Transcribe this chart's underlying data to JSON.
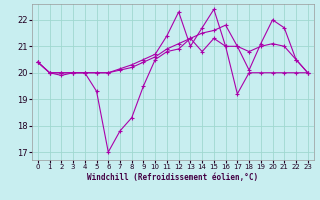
{
  "xlabel": "Windchill (Refroidissement éolien,°C)",
  "background_color": "#c8eef0",
  "grid_color": "#a0d8d0",
  "line_color": "#aa00aa",
  "xlim": [
    -0.5,
    23.5
  ],
  "ylim": [
    16.7,
    22.6
  ],
  "yticks": [
    17,
    18,
    19,
    20,
    21,
    22
  ],
  "xticks": [
    0,
    1,
    2,
    3,
    4,
    5,
    6,
    7,
    8,
    9,
    10,
    11,
    12,
    13,
    14,
    15,
    16,
    17,
    18,
    19,
    20,
    21,
    22,
    23
  ],
  "line1_x": [
    0,
    1,
    2,
    3,
    4,
    5,
    6,
    7,
    8,
    9,
    10,
    11,
    12,
    13,
    14,
    15,
    16,
    17,
    18,
    19,
    20,
    21,
    22,
    23
  ],
  "line1_y": [
    20.4,
    20.0,
    19.9,
    20.0,
    20.0,
    19.3,
    17.0,
    17.8,
    18.3,
    19.5,
    20.5,
    20.8,
    20.9,
    21.3,
    20.8,
    21.3,
    21.0,
    19.2,
    20.0,
    20.0,
    20.0,
    20.0,
    20.0,
    20.0
  ],
  "line2_x": [
    0,
    1,
    2,
    3,
    4,
    5,
    6,
    7,
    8,
    9,
    10,
    11,
    12,
    13,
    14,
    15,
    16,
    17,
    18,
    19,
    20,
    21,
    22,
    23
  ],
  "line2_y": [
    20.4,
    20.0,
    20.0,
    20.0,
    20.0,
    20.0,
    20.0,
    20.15,
    20.3,
    20.5,
    20.7,
    21.4,
    22.3,
    21.0,
    21.7,
    22.4,
    21.0,
    21.0,
    20.1,
    21.1,
    22.0,
    21.7,
    20.5,
    20.0
  ],
  "line3_x": [
    0,
    1,
    2,
    3,
    4,
    5,
    6,
    7,
    8,
    9,
    10,
    11,
    12,
    13,
    14,
    15,
    16,
    17,
    18,
    19,
    20,
    21,
    22,
    23
  ],
  "line3_y": [
    20.4,
    20.0,
    20.0,
    20.0,
    20.0,
    20.0,
    20.0,
    20.1,
    20.2,
    20.4,
    20.6,
    20.9,
    21.1,
    21.3,
    21.5,
    21.6,
    21.8,
    21.0,
    20.8,
    21.0,
    21.1,
    21.0,
    20.5,
    20.0
  ]
}
